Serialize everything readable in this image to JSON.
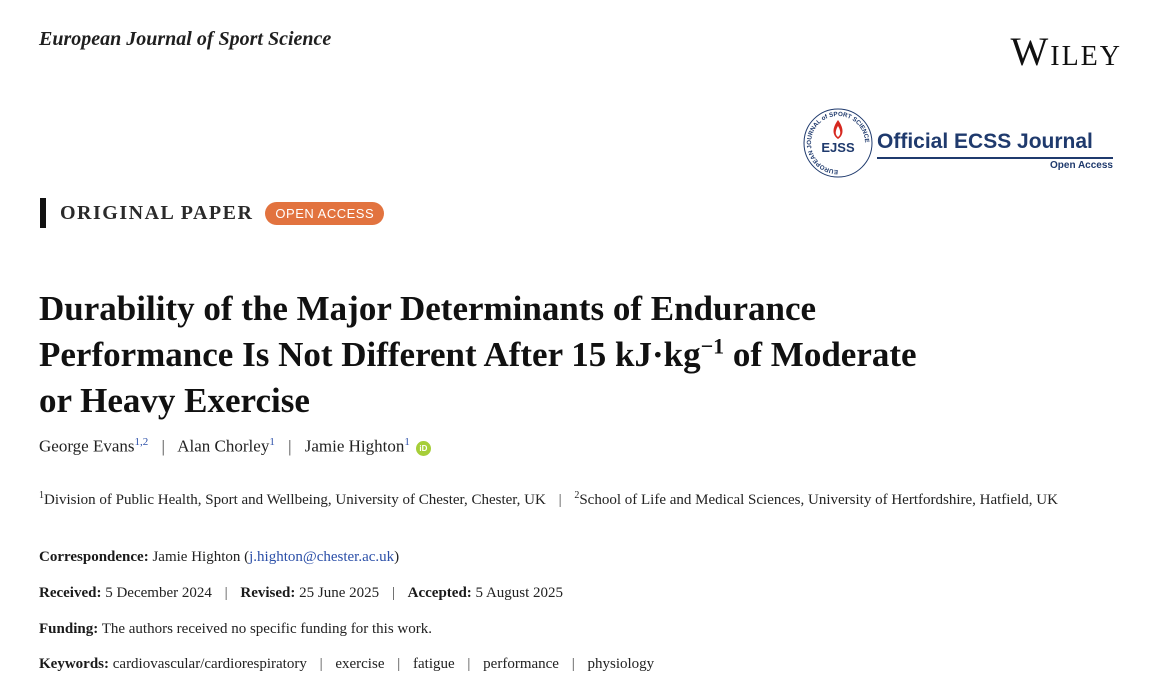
{
  "journal": {
    "name": "European Journal of Sport Science"
  },
  "publisher": {
    "logo_text": "Wiley"
  },
  "ecss": {
    "title": "Official ECSS Journal",
    "subtitle": "Open Access",
    "emblem_abbrev": "EJSS",
    "emblem_ring_text": "EUROPEAN JOURNAL of SPORT SCIENCE",
    "flame_color": "#d6281f",
    "brand_color": "#1f3a6d"
  },
  "paper": {
    "type": "ORIGINAL PAPER",
    "access_badge": "OPEN ACCESS",
    "title_line1": "Durability of the Major Determinants of Endurance",
    "title_line2a": "Performance Is Not Different After 15 kJ·kg",
    "title_sup": "−1",
    "title_line2b": " of Moderate",
    "title_line3": "or Heavy Exercise"
  },
  "authors": [
    {
      "name": "George Evans",
      "sup": "1,2"
    },
    {
      "name": "Alan Chorley",
      "sup": "1"
    },
    {
      "name": "Jamie Highton",
      "sup": "1",
      "orcid_icon": "orcid-icon",
      "orcid_label": "iD"
    }
  ],
  "separator": "|",
  "affiliations": [
    {
      "sup": "1",
      "text": "Division of Public Health, Sport and Wellbeing, University of Chester, Chester, UK"
    },
    {
      "sup": "2",
      "text": "School of Life and Medical Sciences, University of Hertfordshire, Hatfield, UK"
    }
  ],
  "correspondence": {
    "label": "Correspondence:",
    "name": "Jamie Highton",
    "email": "j.highton@chester.ac.uk"
  },
  "dates": {
    "received_label": "Received:",
    "received": "5 December 2024",
    "revised_label": "Revised:",
    "revised": "25 June 2025",
    "accepted_label": "Accepted:",
    "accepted": "5 August 2025"
  },
  "funding": {
    "label": "Funding:",
    "text": "The authors received no specific funding for this work."
  },
  "keywords": {
    "label": "Keywords:",
    "items": [
      "cardiovascular/cardiorespiratory",
      "exercise",
      "fatigue",
      "performance",
      "physiology"
    ]
  },
  "colors": {
    "accent": "#e2733f",
    "link": "#2b4fa8",
    "orcid": "#a6ce39"
  }
}
